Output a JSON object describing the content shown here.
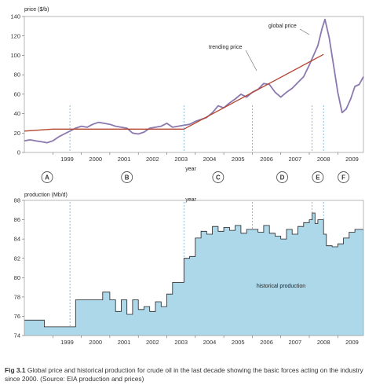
{
  "chart_data": [
    {
      "type": "line",
      "ylabel": "price ($/b)",
      "xlabel": "year",
      "ylim": [
        0,
        140
      ],
      "xlim": [
        1998,
        2009.9
      ],
      "yticks": [
        0,
        20,
        40,
        60,
        80,
        100,
        120,
        140
      ],
      "xticks": [
        "1999",
        "2000",
        "2001",
        "2002",
        "2003",
        "2004",
        "2005",
        "2006",
        "2007",
        "2008",
        "2009"
      ],
      "grid": false,
      "annotations": [
        "global price",
        "trending price"
      ],
      "series": [
        {
          "name": "global price",
          "color": "#8b78ae",
          "x": [
            1998.0,
            1998.2,
            1998.4,
            1998.6,
            1998.8,
            1999.0,
            1999.2,
            1999.4,
            1999.6,
            1999.8,
            2000.0,
            2000.2,
            2000.4,
            2000.6,
            2000.8,
            2001.0,
            2001.2,
            2001.4,
            2001.6,
            2001.8,
            2002.0,
            2002.2,
            2002.4,
            2002.6,
            2002.8,
            2003.0,
            2003.2,
            2003.4,
            2003.6,
            2003.8,
            2004.0,
            2004.2,
            2004.4,
            2004.6,
            2004.8,
            2005.0,
            2005.2,
            2005.4,
            2005.6,
            2005.8,
            2006.0,
            2006.2,
            2006.4,
            2006.6,
            2006.8,
            2007.0,
            2007.2,
            2007.4,
            2007.6,
            2007.8,
            2008.0,
            2008.15,
            2008.3,
            2008.45,
            2008.55,
            2008.7,
            2008.85,
            2009.0,
            2009.15,
            2009.3,
            2009.45,
            2009.6,
            2009.75,
            2009.9
          ],
          "y": [
            12,
            13,
            12,
            11,
            10,
            12,
            16,
            19,
            22,
            25,
            27,
            26,
            29,
            31,
            30,
            29,
            27,
            26,
            25,
            20,
            19,
            21,
            25,
            26,
            27,
            30,
            26,
            27,
            28,
            29,
            32,
            34,
            36,
            41,
            48,
            46,
            51,
            55,
            60,
            57,
            62,
            65,
            71,
            70,
            62,
            57,
            62,
            66,
            72,
            78,
            90,
            100,
            110,
            128,
            137,
            118,
            90,
            62,
            41,
            45,
            55,
            68,
            70,
            78
          ]
        },
        {
          "name": "trending price",
          "color": "#b5452f",
          "x": [
            1998.0,
            1999.0,
            2000.0,
            2001.0,
            2002.0,
            2003.0,
            2003.6,
            2008.5
          ],
          "y": [
            22,
            24,
            24,
            24,
            24,
            24,
            24,
            101
          ]
        }
      ],
      "markers": [
        1999.6,
        2003.6,
        2006.0,
        2008.1,
        2008.5
      ]
    },
    {
      "type": "area",
      "ylabel": "production (Mb/d)",
      "xlabel": "year",
      "ylim": [
        74,
        88
      ],
      "xlim": [
        1998,
        2009.9
      ],
      "yticks": [
        74,
        76,
        78,
        80,
        82,
        84,
        86,
        88
      ],
      "xticks": [
        "1999",
        "2000",
        "2001",
        "2002",
        "2003",
        "2004",
        "2005",
        "2006",
        "2007",
        "2008",
        "2009"
      ],
      "grid": false,
      "annotations": [
        "historical production"
      ],
      "series": [
        {
          "name": "historical production",
          "color": "#add8ea",
          "x": [
            1998.0,
            1998.3,
            1998.5,
            1998.7,
            1999.0,
            1999.3,
            1999.6,
            1999.8,
            2000.0,
            2000.25,
            2000.5,
            2000.75,
            2001.0,
            2001.2,
            2001.4,
            2001.6,
            2001.8,
            2002.0,
            2002.2,
            2002.4,
            2002.6,
            2002.8,
            2003.0,
            2003.2,
            2003.4,
            2003.6,
            2003.8,
            2004.0,
            2004.2,
            2004.4,
            2004.6,
            2004.8,
            2005.0,
            2005.2,
            2005.4,
            2005.6,
            2005.8,
            2006.0,
            2006.2,
            2006.4,
            2006.6,
            2006.8,
            2007.0,
            2007.2,
            2007.4,
            2007.6,
            2007.8,
            2008.0,
            2008.1,
            2008.2,
            2008.3,
            2008.5,
            2008.6,
            2008.8,
            2009.0,
            2009.2,
            2009.4,
            2009.6,
            2009.8
          ],
          "y": [
            75.6,
            75.6,
            75.6,
            74.9,
            74.9,
            74.9,
            74.9,
            77.7,
            77.7,
            77.7,
            77.7,
            78.5,
            77.7,
            76.5,
            77.7,
            76.2,
            77.7,
            76.7,
            77.0,
            76.5,
            77.5,
            77.0,
            78.3,
            79.5,
            79.5,
            82.0,
            82.2,
            84.1,
            84.8,
            84.5,
            85.3,
            84.8,
            85.2,
            84.9,
            85.4,
            84.6,
            85.0,
            85.0,
            84.7,
            85.4,
            84.6,
            84.3,
            84.0,
            85.0,
            84.5,
            85.3,
            85.7,
            86.0,
            86.7,
            85.6,
            86.0,
            84.5,
            83.3,
            83.2,
            83.5,
            84.1,
            84.7,
            85.0,
            85.0
          ]
        }
      ],
      "markers": [
        1999.6,
        2003.6,
        2006.0,
        2008.1,
        2008.5
      ]
    }
  ],
  "phases": [
    "A",
    "B",
    "C",
    "D",
    "E",
    "F"
  ],
  "caption": {
    "label": "Fig 3.1",
    "text": "Global price and historical production for crude oil in the last decade showing the basic forces acting on the industry since 2000. (Source: EIA production and prices)"
  }
}
